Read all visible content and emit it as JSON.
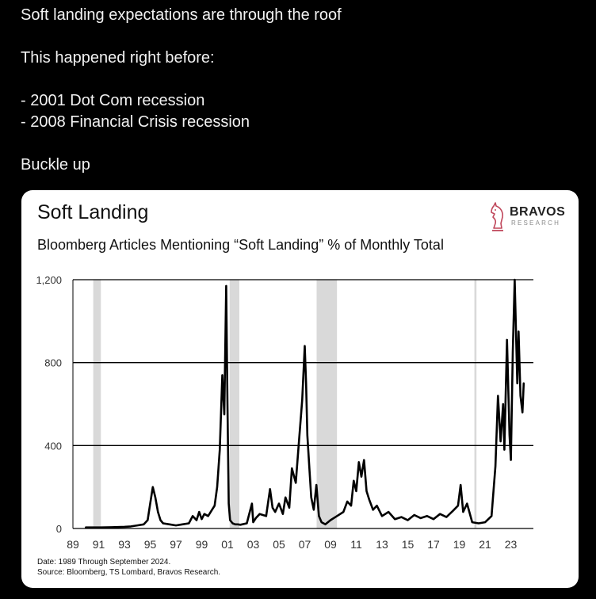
{
  "post": {
    "lines": [
      "Soft landing expectations are through the roof",
      "",
      "This happened right before:",
      "",
      "- 2001 Dot Com recession",
      "- 2008 Financial Crisis recession",
      "",
      "Buckle up"
    ]
  },
  "brand": {
    "name": "BRAVOS",
    "sub": "RESEARCH",
    "accent": "#c0485c"
  },
  "chart_data": {
    "type": "line",
    "title": "Soft Landing",
    "subtitle": "Bloomberg Articles Mentioning “Soft Landing” % of Monthly Total",
    "xlabel": "",
    "ylabel": "",
    "xlim": [
      1989,
      2024.75
    ],
    "ylim": [
      0,
      1200
    ],
    "yticks": [
      0,
      400,
      800,
      1200
    ],
    "ytick_labels": [
      "0",
      "400",
      "800",
      "1,200"
    ],
    "xticks": [
      1989,
      1991,
      1993,
      1995,
      1997,
      1999,
      2001,
      2003,
      2005,
      2007,
      2009,
      2011,
      2013,
      2015,
      2017,
      2019,
      2021,
      2023
    ],
    "xtick_labels": [
      "89",
      "91",
      "93",
      "95",
      "97",
      "99",
      "01",
      "03",
      "05",
      "07",
      "09",
      "11",
      "13",
      "15",
      "17",
      "19",
      "21",
      "23"
    ],
    "grid": "horizontal",
    "line_color": "#000000",
    "recession_color": "#d9d9d9",
    "recessions": [
      [
        1990.58,
        1991.17
      ],
      [
        2001.17,
        2001.92
      ],
      [
        2007.92,
        2009.5
      ],
      [
        2020.17,
        2020.33
      ]
    ],
    "series": [
      {
        "x": [
          1990.0,
          1991.0,
          1992.0,
          1993.0,
          1993.5,
          1994.0,
          1994.5,
          1994.8,
          1995.0,
          1995.2,
          1995.4,
          1995.6,
          1995.8,
          1996.0,
          1996.5,
          1997.0,
          1997.5,
          1998.0,
          1998.3,
          1998.6,
          1998.8,
          1999.0,
          1999.2,
          1999.5,
          1999.8,
          2000.0,
          2000.2,
          2000.4,
          2000.6,
          2000.75,
          2000.9,
          2001.0,
          2001.1,
          2001.2,
          2001.4,
          2001.6,
          2001.8,
          2002.0,
          2002.5,
          2002.9,
          2003.0,
          2003.2,
          2003.5,
          2004.0,
          2004.3,
          2004.5,
          2004.7,
          2005.0,
          2005.3,
          2005.5,
          2005.8,
          2006.0,
          2006.3,
          2006.5,
          2006.8,
          2007.0,
          2007.1,
          2007.2,
          2007.35,
          2007.5,
          2007.7,
          2007.9,
          2008.1,
          2008.3,
          2008.6,
          2009.0,
          2009.5,
          2010.0,
          2010.3,
          2010.6,
          2010.8,
          2011.0,
          2011.2,
          2011.4,
          2011.6,
          2011.8,
          2012.0,
          2012.3,
          2012.6,
          2013.0,
          2013.5,
          2014.0,
          2014.5,
          2015.0,
          2015.5,
          2016.0,
          2016.5,
          2017.0,
          2017.5,
          2018.0,
          2018.5,
          2018.9,
          2019.1,
          2019.3,
          2019.6,
          2020.0,
          2020.5,
          2021.0,
          2021.5,
          2021.8,
          2022.0,
          2022.2,
          2022.4,
          2022.5,
          2022.7,
          2022.9,
          2023.0,
          2023.15,
          2023.3,
          2023.5,
          2023.6,
          2023.75,
          2023.9,
          2024.0
        ],
        "values": [
          5,
          5,
          6,
          8,
          10,
          15,
          20,
          40,
          120,
          200,
          150,
          80,
          40,
          25,
          20,
          15,
          20,
          25,
          60,
          40,
          80,
          45,
          70,
          60,
          90,
          110,
          200,
          380,
          740,
          550,
          1170,
          600,
          120,
          40,
          25,
          20,
          20,
          18,
          25,
          120,
          30,
          50,
          70,
          60,
          190,
          100,
          80,
          120,
          70,
          150,
          100,
          290,
          220,
          380,
          620,
          880,
          700,
          450,
          300,
          150,
          90,
          210,
          60,
          30,
          20,
          40,
          60,
          80,
          130,
          110,
          230,
          180,
          320,
          250,
          330,
          180,
          140,
          90,
          110,
          60,
          80,
          45,
          55,
          40,
          65,
          50,
          60,
          45,
          70,
          55,
          85,
          110,
          210,
          80,
          120,
          30,
          25,
          30,
          60,
          300,
          640,
          420,
          600,
          380,
          910,
          450,
          330,
          850,
          1200,
          700,
          950,
          640,
          560,
          700
        ]
      }
    ],
    "footnotes": [
      "Date: 1989 Through September 2024.",
      "Source: Bloomberg, TS Lombard, Bravos Research."
    ]
  }
}
